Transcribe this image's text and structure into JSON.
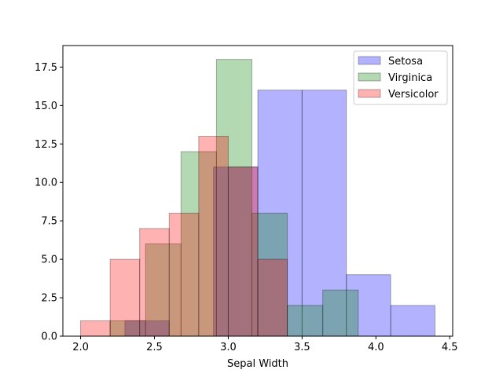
{
  "chart_data": {
    "type": "bar",
    "title": "",
    "xlabel": "Sepal Width",
    "ylabel": "",
    "xlim": [
      1.88,
      4.52
    ],
    "ylim": [
      0,
      18.9
    ],
    "xticks": [
      2.0,
      2.5,
      3.0,
      3.5,
      4.0,
      4.5
    ],
    "xtick_labels": [
      "2.0",
      "2.5",
      "3.0",
      "3.5",
      "4.0",
      "4.5"
    ],
    "yticks": [
      0,
      2.5,
      5,
      7.5,
      10,
      12.5,
      15,
      17.5
    ],
    "ytick_labels": [
      "0.0",
      "2.5",
      "5.0",
      "7.5",
      "10.0",
      "12.5",
      "15.0",
      "17.5"
    ],
    "grid": false,
    "legend_position": "top-right",
    "series": [
      {
        "name": "Setosa",
        "color": "#0000ff",
        "bins": [
          {
            "x0": 2.3,
            "x1": 2.6,
            "count": 1
          },
          {
            "x0": 2.9,
            "x1": 3.2,
            "count": 11
          },
          {
            "x0": 3.2,
            "x1": 3.5,
            "count": 16
          },
          {
            "x0": 3.5,
            "x1": 3.8,
            "count": 16
          },
          {
            "x0": 3.8,
            "x1": 4.1,
            "count": 4
          },
          {
            "x0": 4.1,
            "x1": 4.4,
            "count": 2
          }
        ]
      },
      {
        "name": "Virginica",
        "color": "#008000",
        "bins": [
          {
            "x0": 2.2,
            "x1": 2.44,
            "count": 1
          },
          {
            "x0": 2.44,
            "x1": 2.68,
            "count": 6
          },
          {
            "x0": 2.68,
            "x1": 2.92,
            "count": 12
          },
          {
            "x0": 2.92,
            "x1": 3.16,
            "count": 18
          },
          {
            "x0": 3.16,
            "x1": 3.4,
            "count": 8
          },
          {
            "x0": 3.4,
            "x1": 3.64,
            "count": 2
          },
          {
            "x0": 3.64,
            "x1": 3.88,
            "count": 3
          }
        ]
      },
      {
        "name": "Versicolor",
        "color": "#ff0000",
        "bins": [
          {
            "x0": 2.0,
            "x1": 2.2,
            "count": 1
          },
          {
            "x0": 2.2,
            "x1": 2.4,
            "count": 5
          },
          {
            "x0": 2.4,
            "x1": 2.6,
            "count": 7
          },
          {
            "x0": 2.6,
            "x1": 2.8,
            "count": 8
          },
          {
            "x0": 2.8,
            "x1": 3.0,
            "count": 13
          },
          {
            "x0": 3.0,
            "x1": 3.2,
            "count": 11
          },
          {
            "x0": 3.2,
            "x1": 3.4,
            "count": 5
          }
        ]
      }
    ]
  }
}
